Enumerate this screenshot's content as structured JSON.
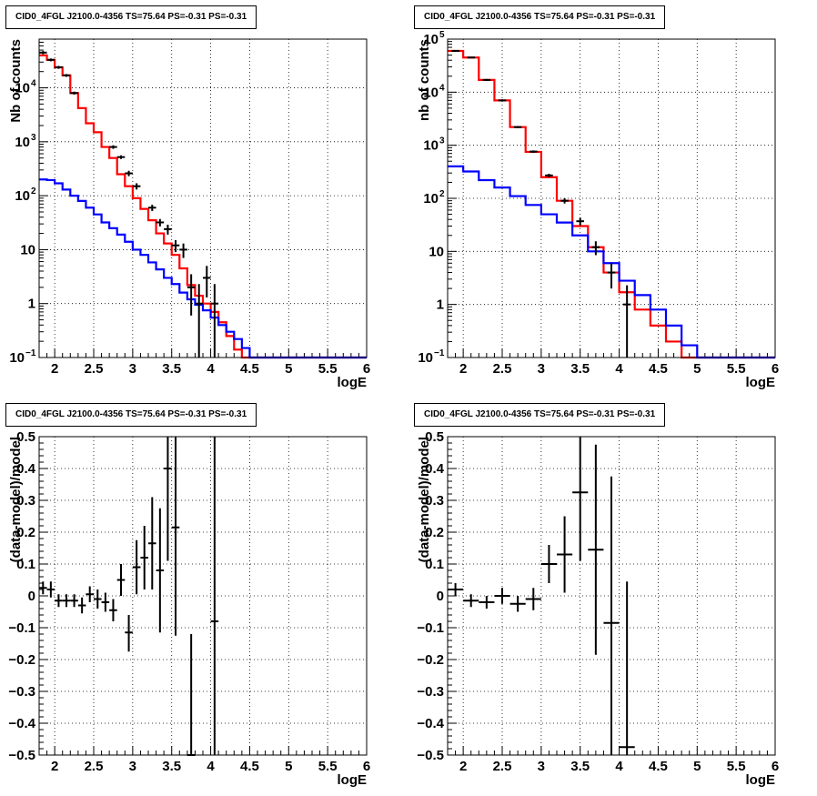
{
  "title": "CID0_4FGL J2100.0-4356 TS=75.64 PS=-0.31 PS=-0.31",
  "chart_data": [
    {
      "type": "line",
      "panel": "top-left",
      "ylabel": "Nb of counts",
      "xlabel": "logE",
      "log_y": true,
      "xlim": [
        1.8,
        6.0
      ],
      "ylim": [
        0.1,
        80000
      ],
      "x_ticks": [
        "2",
        "2.5",
        "3",
        "3.5",
        "4",
        "4.5",
        "5",
        "5.5",
        "6"
      ],
      "y_ticks": [
        {
          "v": 0.1,
          "l": "10",
          "e": "−1"
        },
        {
          "v": 1,
          "l": "1"
        },
        {
          "v": 10,
          "l": "10"
        },
        {
          "v": 100,
          "l": "10",
          "e": "2"
        },
        {
          "v": 1000,
          "l": "10",
          "e": "3"
        },
        {
          "v": 10000,
          "l": "10",
          "e": "4"
        }
      ],
      "grid": true,
      "series": [
        {
          "color": "#ff0000",
          "edges": [
            1.8,
            1.9,
            2.0,
            2.1,
            2.2,
            2.3,
            2.4,
            2.5,
            2.6,
            2.7,
            2.8,
            2.9,
            3.0,
            3.1,
            3.2,
            3.3,
            3.4,
            3.5,
            3.6,
            3.7,
            3.8,
            3.9,
            4.0,
            4.1,
            4.2,
            4.3,
            4.4,
            4.5,
            4.6,
            4.7,
            4.8,
            4.9,
            5.0,
            5.1,
            5.2,
            5.3,
            5.4,
            5.5,
            5.6,
            5.7,
            5.8,
            5.9,
            6.0
          ],
          "values": [
            40000,
            33000,
            24000,
            17000,
            8000,
            4200,
            2200,
            1500,
            800,
            500,
            250,
            150,
            90,
            57,
            35,
            20,
            13,
            8,
            4.5,
            2.2,
            1.4,
            1.0,
            0.7,
            0.45,
            0.25,
            0.14,
            0.1,
            0.1,
            0.1,
            0.1,
            0.1,
            0.1,
            0.1,
            0.1,
            0.1,
            0.1,
            0.1,
            0.1,
            0.1,
            0.1,
            0.1,
            0.1
          ]
        },
        {
          "color": "#0000ff",
          "edges": [
            1.8,
            1.9,
            2.0,
            2.1,
            2.2,
            2.3,
            2.4,
            2.5,
            2.6,
            2.7,
            2.8,
            2.9,
            3.0,
            3.1,
            3.2,
            3.3,
            3.4,
            3.5,
            3.6,
            3.7,
            3.8,
            3.9,
            4.0,
            4.1,
            4.2,
            4.3,
            4.4,
            4.5,
            4.6,
            4.7,
            4.8,
            4.9,
            5.0,
            5.1,
            5.2,
            5.3,
            5.4,
            5.5,
            5.6,
            5.7,
            5.8,
            5.9,
            6.0
          ],
          "values": [
            200,
            195,
            170,
            130,
            100,
            80,
            60,
            45,
            32,
            25,
            19,
            14,
            10,
            8,
            5.8,
            4.3,
            3.0,
            2.3,
            1.6,
            1.2,
            0.95,
            0.75,
            0.55,
            0.4,
            0.3,
            0.22,
            0.15,
            0.1,
            0.1,
            0.1,
            0.1,
            0.1,
            0.1,
            0.1,
            0.1,
            0.1,
            0.1,
            0.1,
            0.1,
            0.1,
            0.1,
            0.1
          ]
        }
      ],
      "points": [
        {
          "x": 1.85,
          "y": 45000,
          "lo": 42000,
          "hi": 48000
        },
        {
          "x": 1.95,
          "y": 33000,
          "lo": 31000,
          "hi": 35000
        },
        {
          "x": 2.05,
          "y": 24000,
          "lo": 22500,
          "hi": 25500
        },
        {
          "x": 2.15,
          "y": 17000,
          "lo": 16000,
          "hi": 18000
        },
        {
          "x": 2.25,
          "y": 8000,
          "lo": 7500,
          "hi": 8500
        },
        {
          "x": 2.75,
          "y": 800,
          "lo": 740,
          "hi": 860
        },
        {
          "x": 2.85,
          "y": 520,
          "lo": 480,
          "hi": 560
        },
        {
          "x": 2.95,
          "y": 260,
          "lo": 230,
          "hi": 290
        },
        {
          "x": 3.05,
          "y": 150,
          "lo": 130,
          "hi": 170
        },
        {
          "x": 3.25,
          "y": 60,
          "lo": 52,
          "hi": 68
        },
        {
          "x": 3.35,
          "y": 32,
          "lo": 27,
          "hi": 37
        },
        {
          "x": 3.45,
          "y": 24,
          "lo": 19,
          "hi": 29
        },
        {
          "x": 3.55,
          "y": 12,
          "lo": 9,
          "hi": 15
        },
        {
          "x": 3.65,
          "y": 10,
          "lo": 7,
          "hi": 13
        },
        {
          "x": 3.75,
          "y": 2,
          "lo": 0.6,
          "hi": 3.5
        },
        {
          "x": 3.85,
          "y": 1,
          "lo": 0.1,
          "hi": 2.3
        },
        {
          "x": 3.95,
          "y": 3,
          "lo": 1.3,
          "hi": 5
        },
        {
          "x": 4.05,
          "y": 1,
          "lo": 0.1,
          "hi": 2.3
        }
      ]
    },
    {
      "type": "line",
      "panel": "top-right",
      "ylabel": "nb of counts",
      "xlabel": "logE",
      "log_y": true,
      "xlim": [
        1.8,
        6.0
      ],
      "ylim": [
        0.1,
        100000
      ],
      "x_ticks": [
        "2",
        "2.5",
        "3",
        "3.5",
        "4",
        "4.5",
        "5",
        "5.5",
        "6"
      ],
      "y_ticks": [
        {
          "v": 0.1,
          "l": "10",
          "e": "−1"
        },
        {
          "v": 1,
          "l": "1"
        },
        {
          "v": 10,
          "l": "10"
        },
        {
          "v": 100,
          "l": "10",
          "e": "2"
        },
        {
          "v": 1000,
          "l": "10",
          "e": "3"
        },
        {
          "v": 10000,
          "l": "10",
          "e": "4"
        },
        {
          "v": 100000,
          "l": "10",
          "e": "5"
        }
      ],
      "grid": true,
      "series": [
        {
          "color": "#ff0000",
          "edges": [
            1.8,
            2.0,
            2.2,
            2.4,
            2.6,
            2.8,
            3.0,
            3.2,
            3.4,
            3.6,
            3.8,
            4.0,
            4.2,
            4.4,
            4.6,
            4.8,
            5.0,
            5.2,
            5.4,
            5.6,
            5.8,
            6.0
          ],
          "values": [
            60000,
            45000,
            17000,
            7000,
            2200,
            750,
            250,
            90,
            30,
            12,
            4,
            1.7,
            0.8,
            0.4,
            0.2,
            0.1,
            0.1,
            0.1,
            0.1,
            0.1,
            0.1
          ]
        },
        {
          "color": "#0000ff",
          "edges": [
            1.8,
            2.0,
            2.2,
            2.4,
            2.6,
            2.8,
            3.0,
            3.2,
            3.4,
            3.6,
            3.8,
            4.0,
            4.2,
            4.4,
            4.6,
            4.8,
            5.0,
            5.2,
            5.4,
            5.6,
            5.8,
            6.0
          ],
          "values": [
            400,
            320,
            220,
            160,
            110,
            75,
            50,
            35,
            20,
            10,
            6,
            2.8,
            1.5,
            0.8,
            0.4,
            0.17,
            0.1,
            0.1,
            0.1,
            0.1,
            0.1
          ]
        }
      ],
      "points": [
        {
          "x": 1.9,
          "y": 60000,
          "lo": 58000,
          "hi": 62000
        },
        {
          "x": 2.1,
          "y": 45000,
          "lo": 43500,
          "hi": 46500
        },
        {
          "x": 2.3,
          "y": 17000,
          "lo": 16300,
          "hi": 17700
        },
        {
          "x": 2.5,
          "y": 7000,
          "lo": 6700,
          "hi": 7300
        },
        {
          "x": 2.7,
          "y": 2200,
          "lo": 2100,
          "hi": 2300
        },
        {
          "x": 2.9,
          "y": 760,
          "lo": 720,
          "hi": 800
        },
        {
          "x": 3.1,
          "y": 270,
          "lo": 250,
          "hi": 290
        },
        {
          "x": 3.3,
          "y": 90,
          "lo": 80,
          "hi": 100
        },
        {
          "x": 3.5,
          "y": 37,
          "lo": 31,
          "hi": 43
        },
        {
          "x": 3.7,
          "y": 12,
          "lo": 8.5,
          "hi": 15.5
        },
        {
          "x": 3.9,
          "y": 4,
          "lo": 2,
          "hi": 6
        },
        {
          "x": 4.1,
          "y": 1,
          "lo": 0.1,
          "hi": 2.3
        }
      ]
    },
    {
      "type": "scatter",
      "panel": "bottom-left",
      "ylabel": "(data-model)/model",
      "xlabel": "logE",
      "log_y": false,
      "xlim": [
        1.8,
        6.0
      ],
      "ylim": [
        -0.5,
        0.5
      ],
      "x_ticks": [
        "2",
        "2.5",
        "3",
        "3.5",
        "4",
        "4.5",
        "5",
        "5.5",
        "6"
      ],
      "y_ticks": [
        {
          "v": -0.5,
          "l": "−0.5"
        },
        {
          "v": -0.4,
          "l": "−0.4"
        },
        {
          "v": -0.3,
          "l": "−0.3"
        },
        {
          "v": -0.2,
          "l": "−0.2"
        },
        {
          "v": -0.1,
          "l": "−0.1"
        },
        {
          "v": 0,
          "l": "0"
        },
        {
          "v": 0.1,
          "l": "0.1"
        },
        {
          "v": 0.2,
          "l": "0.2"
        },
        {
          "v": 0.3,
          "l": "0.3"
        },
        {
          "v": 0.4,
          "l": "0.4"
        },
        {
          "v": 0.5,
          "l": "0.5"
        }
      ],
      "grid": true,
      "xerr": 0.05,
      "points": [
        {
          "x": 1.85,
          "y": 0.025,
          "lo": 0.005,
          "hi": 0.045
        },
        {
          "x": 1.95,
          "y": 0.02,
          "lo": -0.005,
          "hi": 0.045
        },
        {
          "x": 2.05,
          "y": -0.015,
          "lo": -0.035,
          "hi": 0.005
        },
        {
          "x": 2.15,
          "y": -0.015,
          "lo": -0.035,
          "hi": 0.005
        },
        {
          "x": 2.25,
          "y": -0.015,
          "lo": -0.035,
          "hi": 0.005
        },
        {
          "x": 2.35,
          "y": -0.03,
          "lo": -0.055,
          "hi": -0.005
        },
        {
          "x": 2.45,
          "y": 0.005,
          "lo": -0.02,
          "hi": 0.03
        },
        {
          "x": 2.55,
          "y": -0.01,
          "lo": -0.04,
          "hi": 0.02
        },
        {
          "x": 2.65,
          "y": -0.02,
          "lo": -0.05,
          "hi": 0.01
        },
        {
          "x": 2.75,
          "y": -0.045,
          "lo": -0.08,
          "hi": -0.01
        },
        {
          "x": 2.85,
          "y": 0.05,
          "lo": 0.0,
          "hi": 0.1
        },
        {
          "x": 2.95,
          "y": -0.115,
          "lo": -0.175,
          "hi": -0.06
        },
        {
          "x": 3.05,
          "y": 0.09,
          "lo": 0.005,
          "hi": 0.175
        },
        {
          "x": 3.15,
          "y": 0.12,
          "lo": 0.02,
          "hi": 0.22
        },
        {
          "x": 3.25,
          "y": 0.165,
          "lo": 0.02,
          "hi": 0.31
        },
        {
          "x": 3.35,
          "y": 0.08,
          "lo": -0.115,
          "hi": 0.275
        },
        {
          "x": 3.45,
          "y": 0.4,
          "lo": 0.11,
          "hi": 0.5
        },
        {
          "x": 3.55,
          "y": 0.215,
          "lo": -0.125,
          "hi": 0.5
        },
        {
          "x": 3.75,
          "y": -0.5,
          "lo": -0.5,
          "hi": -0.12
        },
        {
          "x": 4.05,
          "y": -0.08,
          "lo": -0.5,
          "hi": 0.5
        }
      ]
    },
    {
      "type": "scatter",
      "panel": "bottom-right",
      "ylabel": "(data-model)/model",
      "xlabel": "logE",
      "log_y": false,
      "xlim": [
        1.8,
        6.0
      ],
      "ylim": [
        -0.5,
        0.5
      ],
      "x_ticks": [
        "2",
        "2.5",
        "3",
        "3.5",
        "4",
        "4.5",
        "5",
        "5.5",
        "6"
      ],
      "y_ticks": [
        {
          "v": -0.5,
          "l": "−0.5"
        },
        {
          "v": -0.4,
          "l": "−0.4"
        },
        {
          "v": -0.3,
          "l": "−0.3"
        },
        {
          "v": -0.2,
          "l": "−0.2"
        },
        {
          "v": -0.1,
          "l": "−0.1"
        },
        {
          "v": 0,
          "l": "0"
        },
        {
          "v": 0.1,
          "l": "0.1"
        },
        {
          "v": 0.2,
          "l": "0.2"
        },
        {
          "v": 0.3,
          "l": "0.3"
        },
        {
          "v": 0.4,
          "l": "0.4"
        },
        {
          "v": 0.5,
          "l": "0.5"
        }
      ],
      "grid": true,
      "xerr": 0.1,
      "points": [
        {
          "x": 1.9,
          "y": 0.02,
          "lo": 0.0,
          "hi": 0.04
        },
        {
          "x": 2.1,
          "y": -0.015,
          "lo": -0.035,
          "hi": 0.005
        },
        {
          "x": 2.3,
          "y": -0.02,
          "lo": -0.04,
          "hi": 0.0
        },
        {
          "x": 2.5,
          "y": 0.0,
          "lo": -0.025,
          "hi": 0.025
        },
        {
          "x": 2.7,
          "y": -0.025,
          "lo": -0.05,
          "hi": 0.0
        },
        {
          "x": 2.9,
          "y": -0.01,
          "lo": -0.045,
          "hi": 0.025
        },
        {
          "x": 3.1,
          "y": 0.1,
          "lo": 0.04,
          "hi": 0.16
        },
        {
          "x": 3.3,
          "y": 0.13,
          "lo": 0.01,
          "hi": 0.25
        },
        {
          "x": 3.5,
          "y": 0.325,
          "lo": 0.11,
          "hi": 0.5
        },
        {
          "x": 3.7,
          "y": 0.145,
          "lo": -0.185,
          "hi": 0.475
        },
        {
          "x": 3.9,
          "y": -0.085,
          "lo": -0.5,
          "hi": 0.375
        },
        {
          "x": 4.1,
          "y": -0.475,
          "lo": -0.5,
          "hi": 0.045
        }
      ]
    }
  ]
}
